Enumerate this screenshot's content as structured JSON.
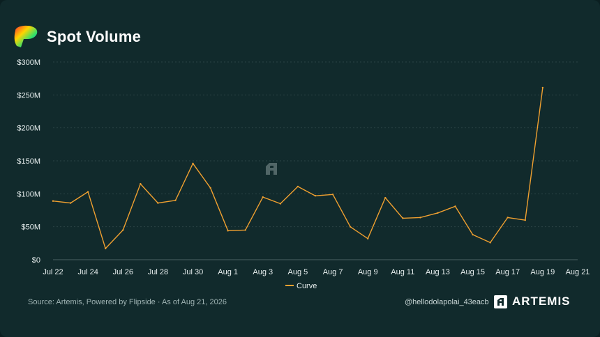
{
  "header": {
    "title": "Spot Volume"
  },
  "footer": {
    "source": "Source: Artemis, Powered by Flipside · As of Aug 21, 2026",
    "handle": "@hellodolapolai_43eacb",
    "brand": "ARTEMIS"
  },
  "icons": {
    "logo": "curve-logo",
    "watermark": "artemis-watermark-icon",
    "brand": "artemis-logo-icon"
  },
  "colors": {
    "line": "#f0a030",
    "background": "#112a2c",
    "grid": "#2c4446"
  },
  "chart_data": {
    "type": "line",
    "title": "Spot Volume",
    "x_tick_labels": [
      "Jul 22",
      "Jul 24",
      "Jul 26",
      "Jul 28",
      "Jul 30",
      "Aug 1",
      "Aug 3",
      "Aug 5",
      "Aug 7",
      "Aug 9",
      "Aug 11",
      "Aug 13",
      "Aug 15",
      "Aug 17",
      "Aug 19",
      "Aug 21"
    ],
    "y_tick_labels": [
      "$0",
      "$50M",
      "$100M",
      "$150M",
      "$200M",
      "$250M",
      "$300M"
    ],
    "y_ticks": [
      0,
      50,
      100,
      150,
      200,
      250,
      300
    ],
    "ylim": [
      0,
      300
    ],
    "y_unit": "$M",
    "xlim": [
      "Jul 22",
      "Aug 21"
    ],
    "grid": true,
    "legend_position": "bottom-center",
    "series": [
      {
        "name": "Curve",
        "color": "#f0a030",
        "x": [
          "Jul 22",
          "Jul 23",
          "Jul 24",
          "Jul 25",
          "Jul 26",
          "Jul 27",
          "Jul 28",
          "Jul 29",
          "Jul 30",
          "Jul 31",
          "Aug 1",
          "Aug 2",
          "Aug 3",
          "Aug 4",
          "Aug 5",
          "Aug 6",
          "Aug 7",
          "Aug 8",
          "Aug 9",
          "Aug 10",
          "Aug 11",
          "Aug 12",
          "Aug 13",
          "Aug 14",
          "Aug 15",
          "Aug 16",
          "Aug 17",
          "Aug 18",
          "Aug 19"
        ],
        "values": [
          89,
          86,
          103,
          17,
          45,
          115,
          86,
          90,
          146,
          109,
          44,
          45,
          95,
          85,
          111,
          97,
          99,
          50,
          32,
          94,
          63,
          64,
          71,
          81,
          38,
          26,
          64,
          60,
          261
        ]
      }
    ]
  }
}
